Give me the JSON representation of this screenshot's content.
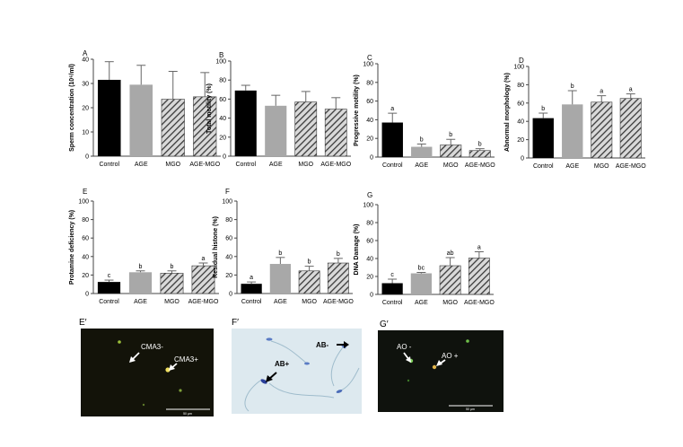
{
  "chart_data": [
    {
      "panel": "A",
      "type": "bar",
      "categories": [
        "Control",
        "AGE",
        "MGO",
        "AGE-MGO"
      ],
      "values": [
        31.5,
        29.5,
        23.5,
        24.5
      ],
      "errors": [
        7.5,
        8,
        11.5,
        10
      ],
      "letters": [
        "",
        "",
        "",
        ""
      ],
      "ylabel": "Sperm concentration (10⁶/ml)",
      "ylim": [
        0,
        40
      ],
      "yticks": [
        0,
        10,
        20,
        30,
        40
      ]
    },
    {
      "panel": "B",
      "type": "bar",
      "categories": [
        "Control",
        "AGE",
        "MGO",
        "AGE-MGO"
      ],
      "values": [
        69,
        53,
        57,
        49.5
      ],
      "errors": [
        5.5,
        11,
        11,
        12
      ],
      "letters": [
        "",
        "",
        "",
        ""
      ],
      "ylabel": "Total motility (%)",
      "ylim": [
        0,
        100
      ],
      "yticks": [
        0,
        20,
        40,
        60,
        80,
        100
      ]
    },
    {
      "panel": "C",
      "type": "bar",
      "categories": [
        "Control",
        "AGE",
        "MGO",
        "AGE-MGO"
      ],
      "values": [
        37,
        11,
        13,
        7
      ],
      "errors": [
        10,
        3,
        6,
        2
      ],
      "letters": [
        "a",
        "b",
        "b",
        "b"
      ],
      "ylabel": "Progressive motility (%)",
      "ylim": [
        0,
        100
      ],
      "yticks": [
        0,
        20,
        40,
        60,
        80,
        100
      ]
    },
    {
      "panel": "D",
      "type": "bar",
      "categories": [
        "Control",
        "AGE",
        "MGO",
        "AGE-MGO"
      ],
      "values": [
        43.5,
        58.5,
        61,
        65
      ],
      "errors": [
        5.5,
        15,
        7,
        5
      ],
      "letters": [
        "b",
        "b",
        "a",
        "a"
      ],
      "ylabel": "Abnormal morphology (%)",
      "ylim": [
        0,
        100
      ],
      "yticks": [
        0,
        20,
        40,
        60,
        80,
        100
      ]
    },
    {
      "panel": "E",
      "type": "bar",
      "categories": [
        "Control",
        "AGE",
        "MGO",
        "AGE-MGO"
      ],
      "values": [
        12.5,
        23,
        22,
        30
      ],
      "errors": [
        2,
        1.5,
        2.5,
        3
      ],
      "letters": [
        "c",
        "b",
        "b",
        "a"
      ],
      "ylabel": "Protamine deficiency (%)",
      "ylim": [
        0,
        100
      ],
      "yticks": [
        0,
        20,
        40,
        60,
        80,
        100
      ]
    },
    {
      "panel": "F",
      "type": "bar",
      "categories": [
        "Control",
        "AGE",
        "MGO",
        "AGE-MGO"
      ],
      "values": [
        10.5,
        32,
        24.5,
        33
      ],
      "errors": [
        2,
        7,
        5,
        5
      ],
      "letters": [
        "a",
        "b",
        "b",
        "b"
      ],
      "ylabel": "Residual histone (%)",
      "ylim": [
        0,
        100
      ],
      "yticks": [
        0,
        20,
        40,
        60,
        80,
        100
      ]
    },
    {
      "panel": "G",
      "type": "bar",
      "categories": [
        "Control",
        "AGE",
        "MGO",
        "AGE-MGO"
      ],
      "values": [
        12.5,
        23.5,
        32,
        40.5
      ],
      "errors": [
        4.5,
        1,
        9,
        7
      ],
      "letters": [
        "c",
        "bc",
        "ab",
        "a"
      ],
      "ylabel": "DNA Damage (%)",
      "ylim": [
        0,
        100
      ],
      "yticks": [
        0,
        20,
        40,
        60,
        80,
        100
      ]
    }
  ],
  "colors": {
    "control": "#000000",
    "age": "#a8a8a8",
    "hatch_fill": "#d9d9d9",
    "hatch_line": "#3a3a3a",
    "axis": "#444444"
  },
  "images": [
    {
      "panel": "E′",
      "background": "#131309",
      "labels": [
        "CMA3-",
        "CMA3+"
      ],
      "scalebar": "50 µm"
    },
    {
      "panel": "F′",
      "background": "#dde9ef",
      "labels": [
        "AB+",
        "AB-"
      ]
    },
    {
      "panel": "G′",
      "background": "#0f120d",
      "labels": [
        "AO -",
        "AO +"
      ],
      "scalebar": "50 µm"
    }
  ]
}
